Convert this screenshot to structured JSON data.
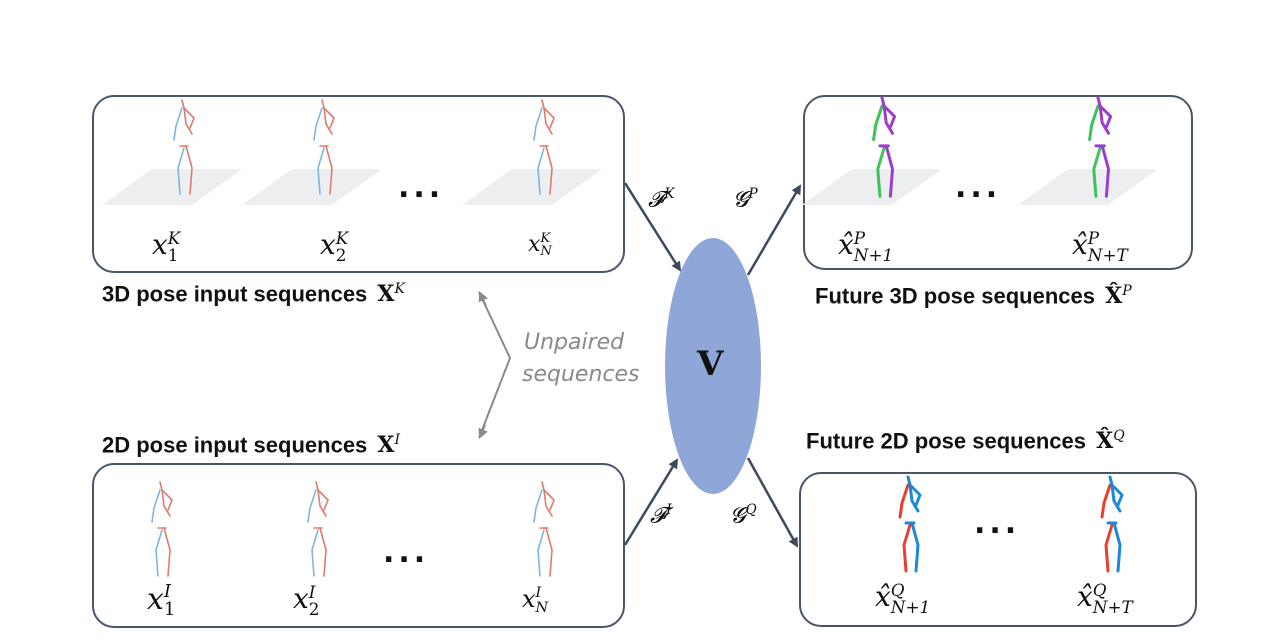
{
  "input_3d": {
    "caption": "3D pose input sequences",
    "set_symbol": "X",
    "set_sup": "K",
    "frames": [
      {
        "base": "x",
        "sup": "K",
        "sub": "1"
      },
      {
        "base": "x",
        "sup": "K",
        "sub": "2"
      },
      {
        "base": "x",
        "sup": "K",
        "sub": "N"
      }
    ]
  },
  "input_2d": {
    "caption": "2D pose input sequences",
    "set_symbol": "X",
    "set_sup": "I",
    "frames": [
      {
        "base": "x",
        "sup": "I",
        "sub": "1"
      },
      {
        "base": "x",
        "sup": "I",
        "sub": "2"
      },
      {
        "base": "x",
        "sup": "I",
        "sub": "N"
      }
    ]
  },
  "future_3d": {
    "caption": "Future 3D pose sequences",
    "set_symbol": "X̂",
    "set_sup": "P",
    "frames": [
      {
        "base": "x̂",
        "sup": "P",
        "sub": "N+1"
      },
      {
        "base": "x̂",
        "sup": "P",
        "sub": "N+T"
      }
    ]
  },
  "future_2d": {
    "caption": "Future 2D pose sequences",
    "set_symbol": "X̂",
    "set_sup": "Q",
    "frames": [
      {
        "base": "x̂",
        "sup": "Q",
        "sub": "N+1"
      },
      {
        "base": "x̂",
        "sup": "Q",
        "sub": "N+T"
      }
    ]
  },
  "center": {
    "label": "V",
    "color": "#8fa6d8"
  },
  "mappings": {
    "F_K": {
      "base": "𝓕",
      "sup": "K"
    },
    "F_I": {
      "base": "𝓕",
      "sup": "I"
    },
    "G_P": {
      "base": "𝓖",
      "sup": "P"
    },
    "G_Q": {
      "base": "𝓖",
      "sup": "Q"
    }
  },
  "unpaired_note": [
    "Unpaired",
    "sequences"
  ],
  "ellipsis": "...",
  "colors": {
    "box_border": "#4a5568",
    "arrow": "#3d4a5c",
    "note_arrow": "#8a8a8a",
    "skeleton_left": "#7eb6e0",
    "skeleton_right": "#e07a6e",
    "future3d_a": "#3cc45a",
    "future3d_b": "#9b3fc9",
    "future2d_a": "#e8402e",
    "future2d_b": "#1e88d8",
    "floor": "#eceef0"
  }
}
